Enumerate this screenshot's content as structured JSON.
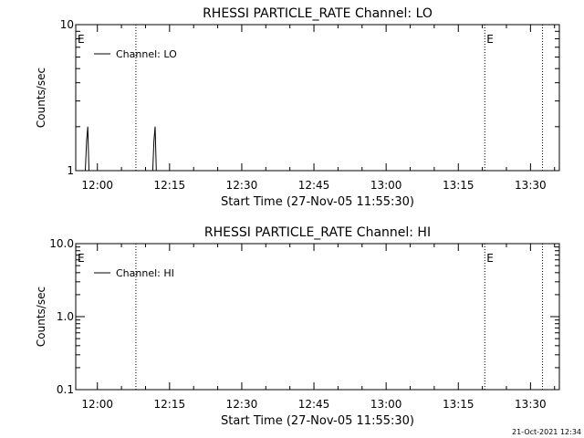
{
  "timestamp": "21-Oct-2021 12:34",
  "chart_data": [
    {
      "type": "line",
      "title": "RHESSI PARTICLE_RATE Channel: LO",
      "xlabel": "Start Time (27-Nov-05 11:55:30)",
      "ylabel": "Counts/sec",
      "yscale": "log",
      "ylim": [
        1,
        10
      ],
      "ytick_labels": [
        "1",
        "10"
      ],
      "xticks": [
        "12:00",
        "12:15",
        "12:30",
        "12:45",
        "13:00",
        "13:15",
        "13:30"
      ],
      "xlim": [
        "11:55:30",
        "13:36:00"
      ],
      "legend": {
        "label": "Channel: LO",
        "placement": "top-left"
      },
      "markers": {
        "label": "E",
        "times": [
          "11:55:30",
          "13:20:30"
        ],
        "dotted_lines": [
          "12:08:00",
          "13:20:30",
          "13:32:30"
        ]
      },
      "series": [
        {
          "x": [
            "11:57:30",
            "11:57:45",
            "11:58:00",
            "11:58:15",
            "12:11:30",
            "12:11:45",
            "12:12:00",
            "12:12:15"
          ],
          "values": [
            1,
            1.6,
            2,
            1,
            1,
            1.6,
            2,
            1
          ]
        }
      ],
      "grid": false
    },
    {
      "type": "line",
      "title": "RHESSI PARTICLE_RATE Channel: HI",
      "xlabel": "Start Time (27-Nov-05 11:55:30)",
      "ylabel": "Counts/sec",
      "yscale": "log",
      "ylim": [
        0.1,
        10
      ],
      "ytick_labels": [
        "0.1",
        "1.0",
        "10.0"
      ],
      "xticks": [
        "12:00",
        "12:15",
        "12:30",
        "12:45",
        "13:00",
        "13:15",
        "13:30"
      ],
      "xlim": [
        "11:55:30",
        "13:36:00"
      ],
      "legend": {
        "label": "Channel: HI",
        "placement": "top-left"
      },
      "markers": {
        "label": "E",
        "times": [
          "11:55:30",
          "13:20:30"
        ],
        "dotted_lines": [
          "12:08:00",
          "13:20:30",
          "13:32:30"
        ]
      },
      "series": [
        {
          "x": [],
          "values": []
        }
      ],
      "grid": false
    }
  ]
}
